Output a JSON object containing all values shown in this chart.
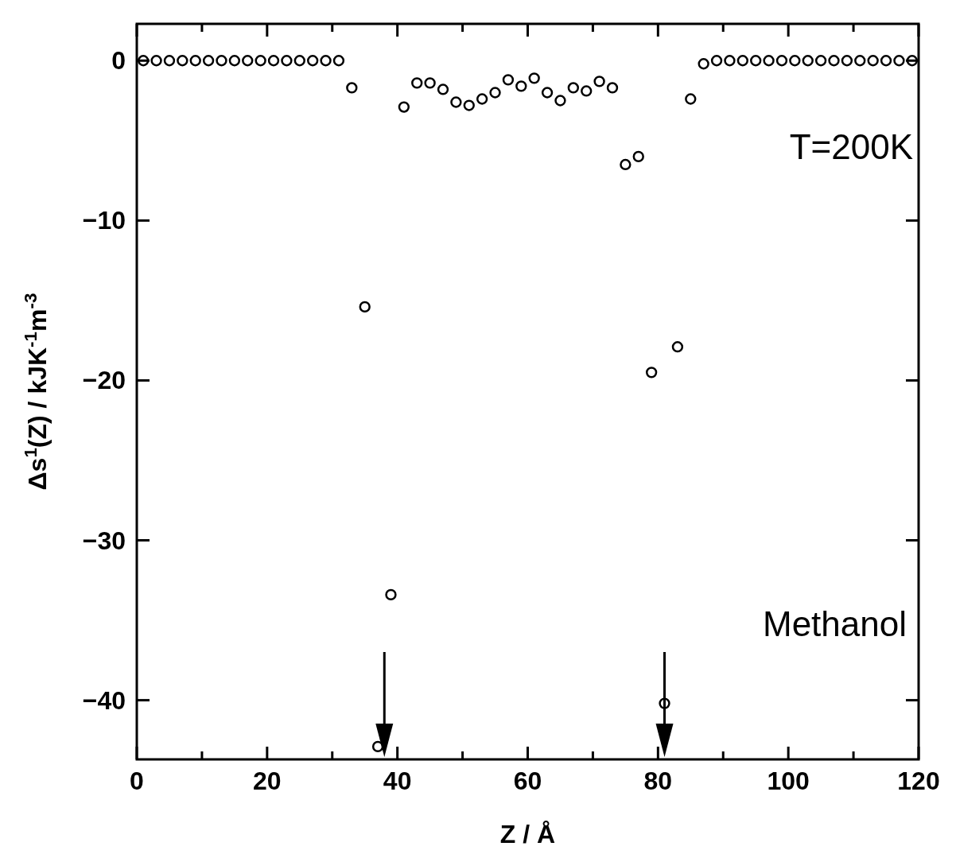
{
  "chart_data": {
    "type": "scatter",
    "xlabel": "Z / Å",
    "ylabel": "Δs$^{1}$(Z) / kJK$^{-1}$m$^{-3}$",
    "annotations": [
      "T=200K",
      "Methanol"
    ],
    "x": [
      1,
      3,
      5,
      7,
      9,
      11,
      13,
      15,
      17,
      19,
      21,
      23,
      25,
      27,
      29,
      31,
      33,
      35,
      37,
      39,
      41,
      43,
      45,
      47,
      49,
      51,
      53,
      55,
      57,
      59,
      61,
      63,
      65,
      67,
      69,
      71,
      73,
      75,
      77,
      79,
      81,
      83,
      85,
      87,
      89,
      91,
      93,
      95,
      97,
      99,
      101,
      103,
      105,
      107,
      109,
      111,
      113,
      115,
      117,
      119
    ],
    "series": [
      {
        "color": "#000000",
        "values": [
          0,
          0,
          0,
          0,
          0,
          0,
          0,
          0,
          0,
          0,
          0,
          0,
          0,
          0,
          0,
          0,
          -1.7,
          -15.4,
          -42.9,
          -33.4,
          -2.9,
          -1.4,
          -1.4,
          -1.8,
          -2.6,
          -2.8,
          -2.4,
          -2.0,
          -1.2,
          -1.6,
          -1.1,
          -2.0,
          -2.5,
          -1.7,
          -1.9,
          -1.3,
          -1.7,
          -6.5,
          -6.0,
          -19.5,
          -40.2,
          -17.9,
          -2.4,
          -0.2,
          0,
          0,
          0,
          0,
          0,
          0,
          0,
          0,
          0,
          0,
          0,
          0,
          0,
          0,
          0,
          0
        ]
      }
    ],
    "marker": "circle",
    "xlim": [
      0,
      120
    ],
    "xticks": [
      0,
      {
        "value": 10,
        "label": null
      },
      20,
      {
        "value": 30,
        "label": null
      },
      40,
      {
        "value": 50,
        "label": null
      },
      60,
      {
        "value": 70,
        "label": null
      },
      80,
      {
        "value": 90,
        "label": null
      },
      100,
      {
        "value": 110,
        "label": null
      },
      120
    ],
    "ylim": [
      -43.7,
      2.3
    ],
    "yticks": [
      0,
      -10,
      -20,
      -30,
      -40
    ],
    "tick_labels": true
  }
}
